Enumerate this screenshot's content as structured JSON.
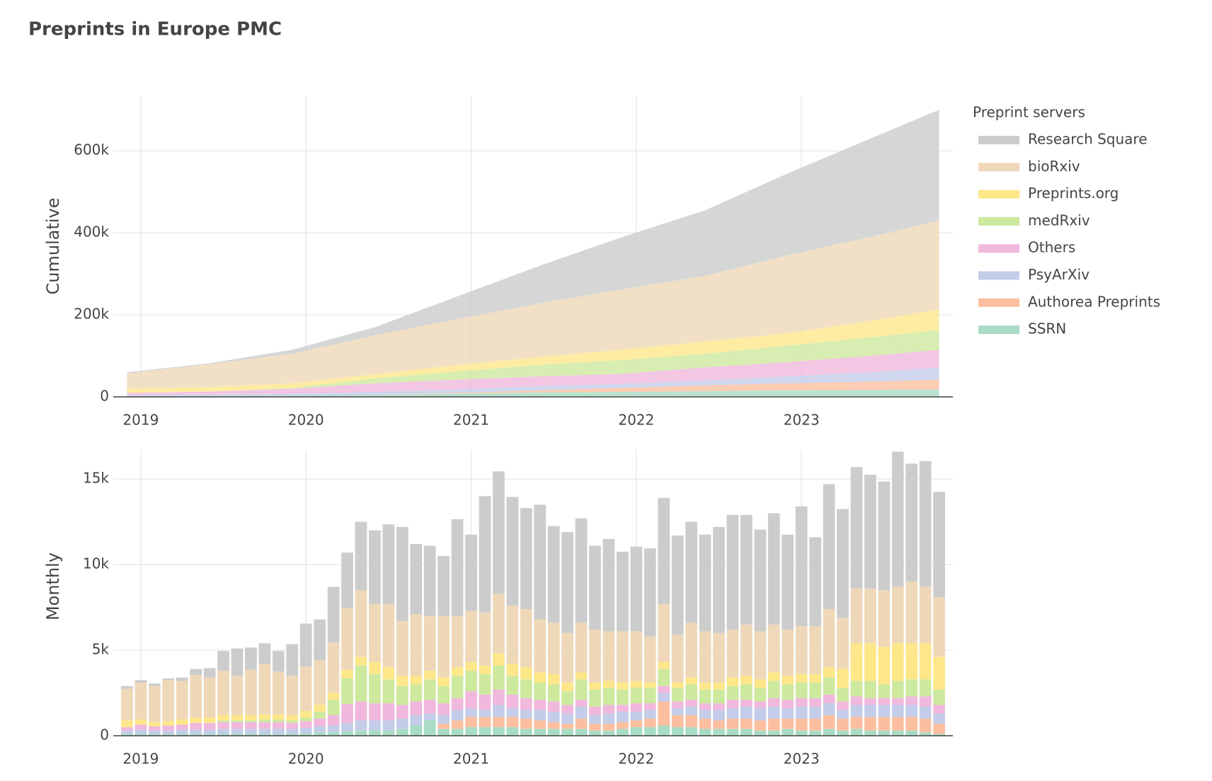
{
  "title": "Preprints in Europe PMC",
  "chart_data": [
    {
      "type": "area",
      "stacked": true,
      "ylabel": "Cumulative",
      "legend_title": "Preprint servers",
      "legend": "right",
      "grid": true,
      "x": [
        "2018-12",
        "2019-06",
        "2019-12",
        "2020-06",
        "2020-12",
        "2021-06",
        "2021-12",
        "2022-06",
        "2022-12",
        "2023-06",
        "2023-11"
      ],
      "xlim": [
        "2018-11",
        "2023-12"
      ],
      "xticks": [
        "2019",
        "2020",
        "2021",
        "2022",
        "2023"
      ],
      "ylim": [
        0,
        735000
      ],
      "yticks": [
        0,
        {
          "value": 200000,
          "label": "200k"
        },
        {
          "value": 400000,
          "label": "400k"
        },
        {
          "value": 600000,
          "label": "600k"
        }
      ],
      "series": [
        {
          "name": "Research Square",
          "color": "#cccccc",
          "values": [
            3000,
            2000,
            10000,
            20000,
            55000,
            92000,
            128000,
            160000,
            200000,
            240000,
            270000
          ]
        },
        {
          "name": "bioRxiv",
          "color": "#efd8b8",
          "values": [
            37000,
            56000,
            72000,
            95000,
            112000,
            131000,
            147000,
            160000,
            190000,
            205000,
            217000
          ]
        },
        {
          "name": "Preprints.org",
          "color": "#fde789",
          "values": [
            10000,
            11000,
            11000,
            10000,
            16000,
            19000,
            25000,
            30000,
            30000,
            40000,
            50000
          ]
        },
        {
          "name": "medRxiv",
          "color": "#cde99e",
          "values": [
            0,
            0,
            2000,
            12000,
            20000,
            28000,
            34000,
            33000,
            40000,
            45000,
            48000
          ]
        },
        {
          "name": "Others",
          "color": "#f0b8dc",
          "values": [
            6000,
            7000,
            12000,
            21000,
            24000,
            24000,
            24000,
            32000,
            35000,
            40000,
            43000
          ]
        },
        {
          "name": "PsyArXiv",
          "color": "#c3cce8",
          "values": [
            3000,
            4000,
            5000,
            7000,
            8000,
            10000,
            10000,
            12000,
            17000,
            23000,
            30000
          ]
        },
        {
          "name": "Authorea Preprints",
          "color": "#fbbfa0",
          "values": [
            0,
            0,
            0,
            0,
            2000,
            5000,
            10000,
            14000,
            17000,
            20000,
            24000
          ]
        },
        {
          "name": "SSRN",
          "color": "#a8dcc4",
          "values": [
            1000,
            2000,
            3000,
            5000,
            8000,
            11000,
            12000,
            14000,
            16000,
            17000,
            18000
          ]
        }
      ]
    },
    {
      "type": "bar",
      "stacked": true,
      "ylabel": "Monthly",
      "grid": true,
      "x": [
        "2018-12",
        "2019-01",
        "2019-02",
        "2019-03",
        "2019-04",
        "2019-05",
        "2019-06",
        "2019-07",
        "2019-08",
        "2019-09",
        "2019-10",
        "2019-11",
        "2019-12",
        "2020-01",
        "2020-02",
        "2020-03",
        "2020-04",
        "2020-05",
        "2020-06",
        "2020-07",
        "2020-08",
        "2020-09",
        "2020-10",
        "2020-11",
        "2020-12",
        "2021-01",
        "2021-02",
        "2021-03",
        "2021-04",
        "2021-05",
        "2021-06",
        "2021-07",
        "2021-08",
        "2021-09",
        "2021-10",
        "2021-11",
        "2021-12",
        "2022-01",
        "2022-02",
        "2022-03",
        "2022-04",
        "2022-05",
        "2022-06",
        "2022-07",
        "2022-08",
        "2022-09",
        "2022-10",
        "2022-11",
        "2022-12",
        "2023-01",
        "2023-02",
        "2023-03",
        "2023-04",
        "2023-05",
        "2023-06",
        "2023-07",
        "2023-08",
        "2023-09",
        "2023-10",
        "2023-11"
      ],
      "xlim": [
        "2018-11",
        "2023-12"
      ],
      "xticks": [
        "2019",
        "2020",
        "2021",
        "2022",
        "2023"
      ],
      "ylim": [
        0,
        16700
      ],
      "yticks": [
        0,
        {
          "value": 5000,
          "label": "5k"
        },
        {
          "value": 10000,
          "label": "10k"
        },
        {
          "value": 15000,
          "label": "15k"
        }
      ],
      "series": [
        {
          "values": [
            150,
            150,
            150,
            100,
            200,
            350,
            550,
            1150,
            1600,
            1300,
            1200,
            1200,
            1850,
            2500,
            2400,
            3250,
            3250,
            4000,
            4300,
            4650,
            5500,
            4100,
            4100,
            3500,
            5650,
            4450,
            6800,
            7150,
            6350,
            5900,
            6700,
            5650,
            5900,
            6100,
            4900,
            5400,
            4650,
            4950,
            5150,
            6200,
            5800,
            5900,
            5650,
            6200,
            6700,
            6400,
            5950,
            6500,
            5550,
            7000,
            5200,
            7300,
            6350,
            7100,
            6650,
            6350,
            7900,
            6900,
            7350,
            6150
          ]
        },
        {
          "values": [
            1850,
            2150,
            2100,
            2400,
            2250,
            2500,
            2350,
            2600,
            2300,
            2650,
            2950,
            2500,
            2300,
            2600,
            2600,
            2950,
            3600,
            3900,
            3400,
            3700,
            3200,
            3600,
            3200,
            3600,
            3000,
            3000,
            3100,
            3500,
            3400,
            3400,
            3100,
            3000,
            2900,
            2900,
            3100,
            2900,
            3000,
            2900,
            2700,
            3400,
            2800,
            3200,
            3000,
            2900,
            2800,
            3000,
            2800,
            2800,
            2700,
            2800,
            2800,
            3400,
            3000,
            3200,
            3200,
            3300,
            3300,
            3600,
            3300,
            3500
          ]
        },
        {
          "values": [
            400,
            300,
            250,
            250,
            300,
            300,
            300,
            300,
            300,
            300,
            300,
            300,
            300,
            400,
            400,
            400,
            500,
            500,
            700,
            700,
            600,
            500,
            500,
            500,
            500,
            500,
            500,
            700,
            700,
            700,
            600,
            600,
            500,
            400,
            400,
            400,
            400,
            400,
            300,
            400,
            300,
            400,
            400,
            400,
            500,
            500,
            500,
            500,
            500,
            500,
            500,
            600,
            1100,
            2200,
            2200,
            2200,
            2200,
            2100,
            2100,
            1900
          ]
        },
        {
          "values": [
            0,
            0,
            0,
            0,
            0,
            0,
            0,
            100,
            100,
            100,
            150,
            150,
            150,
            200,
            400,
            900,
            1500,
            2100,
            1700,
            1400,
            1100,
            1000,
            1200,
            1000,
            1300,
            1200,
            1200,
            1400,
            1100,
            1100,
            1000,
            1000,
            800,
            1200,
            1000,
            1000,
            900,
            900,
            900,
            1000,
            800,
            900,
            800,
            800,
            800,
            900,
            800,
            1000,
            900,
            900,
            900,
            1000,
            800,
            900,
            1000,
            800,
            1000,
            1000,
            1000,
            900
          ]
        },
        {
          "values": [
            200,
            300,
            250,
            300,
            300,
            400,
            400,
            400,
            400,
            400,
            400,
            400,
            350,
            400,
            450,
            600,
            1100,
            1100,
            1000,
            1000,
            800,
            800,
            800,
            700,
            700,
            1000,
            900,
            900,
            800,
            700,
            600,
            600,
            500,
            400,
            500,
            500,
            400,
            500,
            400,
            400,
            400,
            400,
            400,
            400,
            500,
            400,
            400,
            500,
            500,
            500,
            500,
            500,
            500,
            500,
            400,
            400,
            400,
            500,
            600,
            500
          ]
        },
        {
          "values": [
            200,
            250,
            200,
            200,
            250,
            250,
            250,
            300,
            300,
            300,
            300,
            300,
            300,
            300,
            350,
            400,
            500,
            600,
            600,
            600,
            600,
            600,
            400,
            500,
            600,
            500,
            400,
            700,
            500,
            500,
            600,
            600,
            600,
            700,
            500,
            600,
            600,
            500,
            500,
            500,
            400,
            500,
            500,
            600,
            600,
            700,
            700,
            700,
            600,
            700,
            700,
            700,
            500,
            700,
            700,
            700,
            700,
            700,
            700,
            600
          ]
        },
        {
          "values": [
            0,
            0,
            0,
            0,
            0,
            0,
            0,
            0,
            0,
            0,
            0,
            0,
            0,
            0,
            0,
            0,
            0,
            0,
            0,
            0,
            0,
            0,
            0,
            300,
            500,
            600,
            600,
            600,
            600,
            600,
            500,
            400,
            300,
            600,
            400,
            400,
            400,
            400,
            500,
            1400,
            700,
            700,
            600,
            500,
            600,
            600,
            600,
            700,
            600,
            700,
            700,
            800,
            700,
            700,
            800,
            800,
            800,
            800,
            800,
            600
          ]
        },
        {
          "values": [
            100,
            100,
            100,
            100,
            100,
            100,
            100,
            100,
            100,
            100,
            100,
            100,
            100,
            150,
            200,
            200,
            250,
            300,
            300,
            300,
            400,
            600,
            900,
            400,
            400,
            500,
            500,
            500,
            500,
            400,
            400,
            400,
            400,
            400,
            300,
            300,
            400,
            500,
            500,
            600,
            500,
            500,
            400,
            400,
            400,
            400,
            300,
            300,
            400,
            300,
            300,
            400,
            300,
            400,
            300,
            300,
            300,
            300,
            200,
            100
          ]
        }
      ]
    }
  ]
}
